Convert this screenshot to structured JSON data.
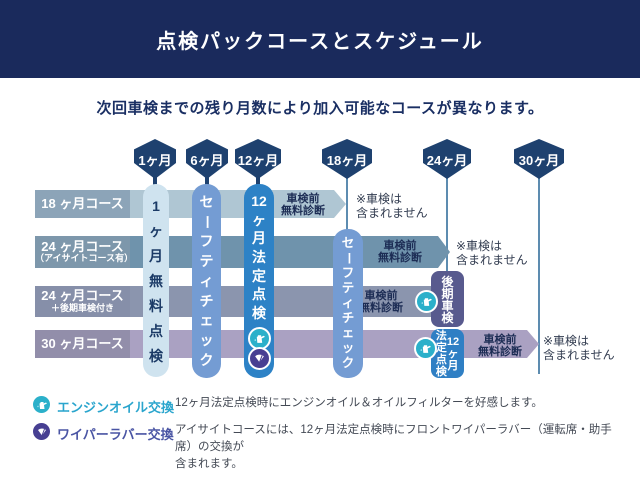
{
  "header": {
    "title": "点検パックコースとスケジュール"
  },
  "intro": "次回車検までの残り月数により加入可能なコースが異なります。",
  "timeline_pins": [
    {
      "label": "1ヶ月"
    },
    {
      "label": "6ヶ月"
    },
    {
      "label": "12ヶ月"
    },
    {
      "label": "18ヶ月"
    },
    {
      "label": "24ヶ月"
    },
    {
      "label": "30ヶ月"
    }
  ],
  "rows": [
    {
      "label": "18 ヶ月コース",
      "sub": "",
      "diagnosis": [
        "車検前",
        "無料診断"
      ],
      "note": [
        "※車検は",
        "含まれません"
      ]
    },
    {
      "label": "24 ヶ月コース",
      "sub": "（アイサイトコース有）",
      "diagnosis": [
        "車検前",
        "無料診断"
      ],
      "note": [
        "※車検は",
        "含まれません"
      ]
    },
    {
      "label": "24 ヶ月コース",
      "sub": "＋後期車検付き",
      "diagnosis": [
        "車検前",
        "無料診断"
      ],
      "note": []
    },
    {
      "label": "30 ヶ月コース",
      "sub": "",
      "diagnosis": [
        "車検前",
        "無料診断"
      ],
      "note": [
        "※車検は",
        "含まれません"
      ]
    }
  ],
  "bars": {
    "free_1mo": [
      "1",
      "ヶ",
      "月",
      "無",
      "料",
      "点",
      "検"
    ],
    "safety_1": [
      "セ",
      "ー",
      "フ",
      "テ",
      "ィ",
      "チ",
      "ェ",
      "ッ",
      "ク"
    ],
    "legal_12mo": [
      "12",
      "ヶ",
      "月",
      "法",
      "定",
      "点",
      "検"
    ],
    "safety_2": [
      "セ",
      "ー",
      "フ",
      "テ",
      "ィ",
      "チ",
      "ェ",
      "ッ",
      "ク"
    ],
    "late_check": [
      "後",
      "期",
      "車",
      "検"
    ],
    "legal_12mo_2": {
      "months": [
        "12",
        "ヶ",
        "月"
      ],
      "name": [
        "法",
        "定",
        "点",
        "検"
      ]
    }
  },
  "legend": [
    {
      "icon": "oil-can-icon",
      "label": "エンジンオイル交換",
      "desc": [
        "12ヶ月法定点検時にエンジンオイル＆オイルフィルターを好感します。"
      ]
    },
    {
      "icon": "wiper-icon",
      "label": "ワイパーラバー交換",
      "desc": [
        "アイサイトコースには、12ヶ月法定点検時にフロントワイパーラバー（運転席・助手席）の交換が",
        "含まれます。"
      ]
    }
  ],
  "colors": {
    "header_navy": "#1a2a5c",
    "pin_navy": "#1e416f",
    "row1_strip": "#afc6d3",
    "row1_label": "#8ca4b8",
    "row2_strip": "#6f93ac",
    "row2_label": "#7d97ab",
    "row3_strip": "#8b95ae",
    "row3_label": "#868fa9",
    "row4_strip": "#aaa1c2",
    "row4_label": "#928eaa",
    "bar_free": "#cfe3ef",
    "bar_safety": "#749cd3",
    "bar_legal": "#2d82c6",
    "bar_late": "#585a8e",
    "bar_legal2": "#2f7fc4",
    "oil_teal": "#2bb0ca",
    "wiper_indigo": "#473f92",
    "legend_oil_text": "#2aa5cd",
    "legend_wiper_text": "#4a55a4"
  }
}
